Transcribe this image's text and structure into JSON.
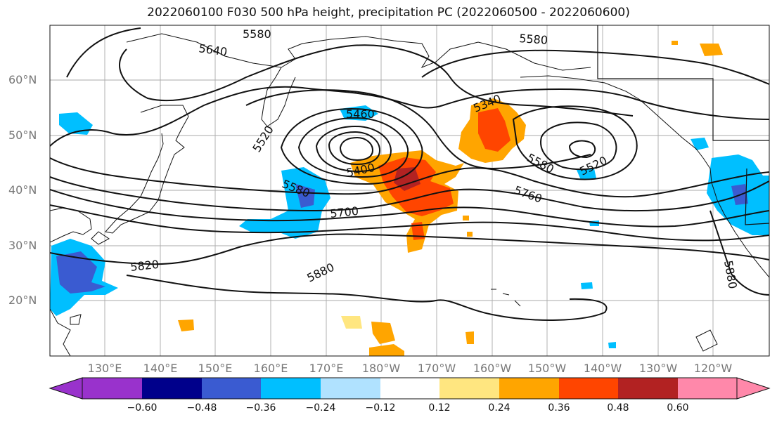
{
  "title": "2022060100 F030 500 hPa height, precipitation PC (2022060500 - 2022060600)",
  "latitude_labels": [
    "60°N",
    "50°N",
    "40°N",
    "30°N",
    "20°N"
  ],
  "longitude_labels": [
    "130°E",
    "140°E",
    "150°E",
    "160°E",
    "170°E",
    "180°W",
    "170°W",
    "160°W",
    "150°W",
    "140°W",
    "130°W",
    "120°W"
  ],
  "contour_labels": [
    "5580",
    "5580",
    "5640",
    "5520",
    "5460",
    "5340",
    "5400",
    "5580",
    "5700",
    "5520",
    "5580",
    "5760",
    "5820",
    "5880",
    "5880"
  ],
  "colorbar": {
    "ticks": [
      "−0.60",
      "−0.48",
      "−0.36",
      "−0.24",
      "−0.12",
      "0.12",
      "0.24",
      "0.36",
      "0.48",
      "0.60"
    ],
    "colors": [
      "#9932cc",
      "#00008b",
      "#3a5bd1",
      "#00bfff",
      "#b0e2ff",
      "#ffffff",
      "#ffe680",
      "#ffa500",
      "#ff4500",
      "#b22222",
      "#ff88aa"
    ]
  }
}
